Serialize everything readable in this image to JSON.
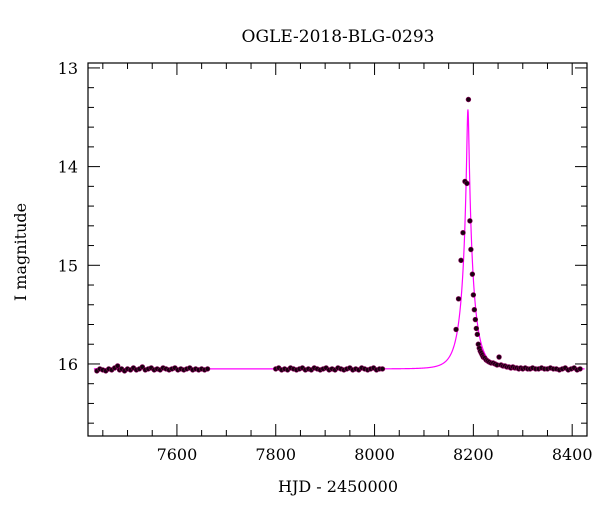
{
  "chart_data": {
    "type": "scatter",
    "title": "OGLE-2018-BLG-0293",
    "xlabel": "HJD - 2450000",
    "ylabel": "I magnitude",
    "xlim": [
      7420,
      8430
    ],
    "ylim": [
      16.73,
      12.95
    ],
    "y_inverted": true,
    "x_major_ticks": [
      7600,
      7800,
      8000,
      8200,
      8400
    ],
    "x_tick_labels": [
      "7600",
      "7800",
      "8000",
      "8200",
      "8400"
    ],
    "y_major_ticks": [
      13,
      14,
      15,
      16
    ],
    "y_tick_labels": [
      "13",
      "14",
      "15",
      "16"
    ],
    "grid": false,
    "colors": {
      "model": "#ff00ff",
      "points": "#1a0010",
      "point_edge": "#8a005a",
      "frame": "#000000"
    },
    "model": {
      "name": "",
      "description_type": "point-lens microlensing",
      "t0": 8189,
      "u0": 0.089,
      "tE": 24,
      "baseline_mag": 16.05
    },
    "series": [
      {
        "name": "",
        "points": [
          [
            7438,
            16.07
          ],
          [
            7444,
            16.05
          ],
          [
            7450,
            16.06
          ],
          [
            7456,
            16.07
          ],
          [
            7462,
            16.05
          ],
          [
            7468,
            16.06
          ],
          [
            7474,
            16.04
          ],
          [
            7480,
            16.02
          ],
          [
            7484,
            16.06
          ],
          [
            7488,
            16.05
          ],
          [
            7494,
            16.07
          ],
          [
            7500,
            16.05
          ],
          [
            7506,
            16.06
          ],
          [
            7512,
            16.04
          ],
          [
            7518,
            16.06
          ],
          [
            7524,
            16.05
          ],
          [
            7530,
            16.03
          ],
          [
            7536,
            16.06
          ],
          [
            7542,
            16.05
          ],
          [
            7548,
            16.04
          ],
          [
            7554,
            16.06
          ],
          [
            7560,
            16.05
          ],
          [
            7566,
            16.06
          ],
          [
            7572,
            16.04
          ],
          [
            7578,
            16.05
          ],
          [
            7584,
            16.06
          ],
          [
            7590,
            16.05
          ],
          [
            7596,
            16.04
          ],
          [
            7602,
            16.06
          ],
          [
            7608,
            16.05
          ],
          [
            7614,
            16.06
          ],
          [
            7620,
            16.05
          ],
          [
            7626,
            16.04
          ],
          [
            7632,
            16.06
          ],
          [
            7638,
            16.05
          ],
          [
            7644,
            16.06
          ],
          [
            7650,
            16.05
          ],
          [
            7656,
            16.06
          ],
          [
            7662,
            16.05
          ],
          [
            7800,
            16.05
          ],
          [
            7806,
            16.04
          ],
          [
            7812,
            16.06
          ],
          [
            7818,
            16.05
          ],
          [
            7824,
            16.06
          ],
          [
            7830,
            16.04
          ],
          [
            7836,
            16.05
          ],
          [
            7842,
            16.06
          ],
          [
            7848,
            16.05
          ],
          [
            7854,
            16.04
          ],
          [
            7860,
            16.06
          ],
          [
            7866,
            16.05
          ],
          [
            7872,
            16.06
          ],
          [
            7878,
            16.04
          ],
          [
            7884,
            16.05
          ],
          [
            7890,
            16.06
          ],
          [
            7896,
            16.05
          ],
          [
            7902,
            16.04
          ],
          [
            7908,
            16.06
          ],
          [
            7914,
            16.05
          ],
          [
            7920,
            16.06
          ],
          [
            7926,
            16.04
          ],
          [
            7932,
            16.05
          ],
          [
            7938,
            16.06
          ],
          [
            7944,
            16.05
          ],
          [
            7950,
            16.04
          ],
          [
            7956,
            16.06
          ],
          [
            7962,
            16.05
          ],
          [
            7968,
            16.06
          ],
          [
            7974,
            16.04
          ],
          [
            7980,
            16.05
          ],
          [
            7986,
            16.06
          ],
          [
            7992,
            16.05
          ],
          [
            7998,
            16.04
          ],
          [
            8004,
            16.06
          ],
          [
            8010,
            16.05
          ],
          [
            8016,
            16.05
          ],
          [
            8165,
            15.65
          ],
          [
            8170,
            15.34
          ],
          [
            8175,
            14.95
          ],
          [
            8179,
            14.67
          ],
          [
            8183,
            14.15
          ],
          [
            8187,
            14.17
          ],
          [
            8190,
            13.32
          ],
          [
            8193,
            14.55
          ],
          [
            8195,
            14.84
          ],
          [
            8198,
            15.09
          ],
          [
            8200,
            15.3
          ],
          [
            8202,
            15.45
          ],
          [
            8204,
            15.55
          ],
          [
            8206,
            15.64
          ],
          [
            8208,
            15.7
          ],
          [
            8210,
            15.8
          ],
          [
            8212,
            15.84
          ],
          [
            8214,
            15.87
          ],
          [
            8216,
            15.89
          ],
          [
            8218,
            15.91
          ],
          [
            8220,
            15.93
          ],
          [
            8223,
            15.94
          ],
          [
            8226,
            15.96
          ],
          [
            8229,
            15.97
          ],
          [
            8232,
            15.98
          ],
          [
            8236,
            15.99
          ],
          [
            8240,
            15.99
          ],
          [
            8244,
            16.0
          ],
          [
            8248,
            16.01
          ],
          [
            8252,
            15.93
          ],
          [
            8256,
            16.01
          ],
          [
            8260,
            16.02
          ],
          [
            8264,
            16.02
          ],
          [
            8268,
            16.03
          ],
          [
            8272,
            16.03
          ],
          [
            8276,
            16.04
          ],
          [
            8280,
            16.03
          ],
          [
            8284,
            16.04
          ],
          [
            8288,
            16.04
          ],
          [
            8292,
            16.05
          ],
          [
            8296,
            16.04
          ],
          [
            8300,
            16.05
          ],
          [
            8305,
            16.04
          ],
          [
            8310,
            16.05
          ],
          [
            8315,
            16.05
          ],
          [
            8320,
            16.04
          ],
          [
            8326,
            16.05
          ],
          [
            8332,
            16.05
          ],
          [
            8338,
            16.04
          ],
          [
            8344,
            16.05
          ],
          [
            8350,
            16.05
          ],
          [
            8356,
            16.04
          ],
          [
            8362,
            16.05
          ],
          [
            8368,
            16.05
          ],
          [
            8374,
            16.06
          ],
          [
            8380,
            16.05
          ],
          [
            8386,
            16.04
          ],
          [
            8392,
            16.06
          ],
          [
            8398,
            16.05
          ],
          [
            8404,
            16.04
          ],
          [
            8410,
            16.06
          ],
          [
            8416,
            16.05
          ]
        ]
      }
    ]
  }
}
